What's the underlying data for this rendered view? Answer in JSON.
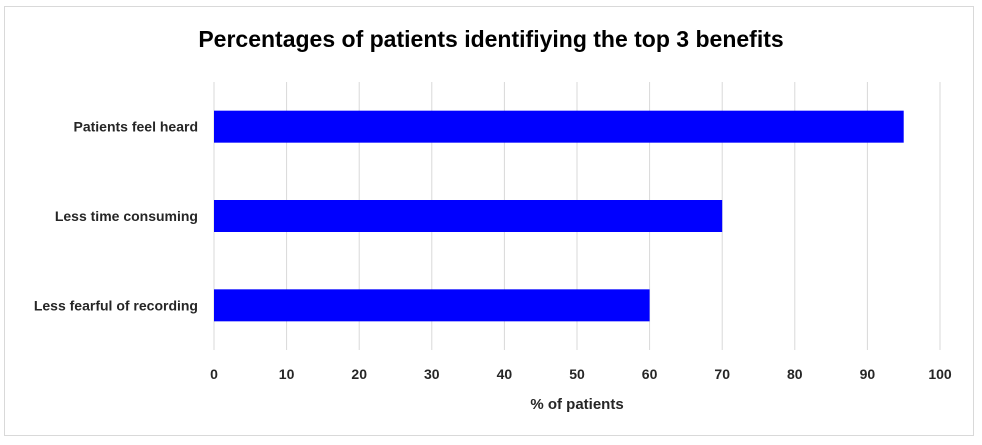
{
  "chart_data": {
    "type": "bar",
    "orientation": "horizontal",
    "title": "Percentages of patients identifiying the top 3 benefits",
    "xlabel": "% of patients",
    "ylabel": "",
    "categories": [
      "Patients feel heard",
      "Less time consuming",
      "Less fearful of recording"
    ],
    "values": [
      95,
      70,
      60
    ],
    "xlim": [
      0,
      100
    ],
    "xticks": [
      0,
      10,
      20,
      30,
      40,
      50,
      60,
      70,
      80,
      90,
      100
    ],
    "grid": "vertical",
    "legend": "none",
    "bar_color": "#0000FF",
    "grid_color": "#d9d9d9"
  }
}
